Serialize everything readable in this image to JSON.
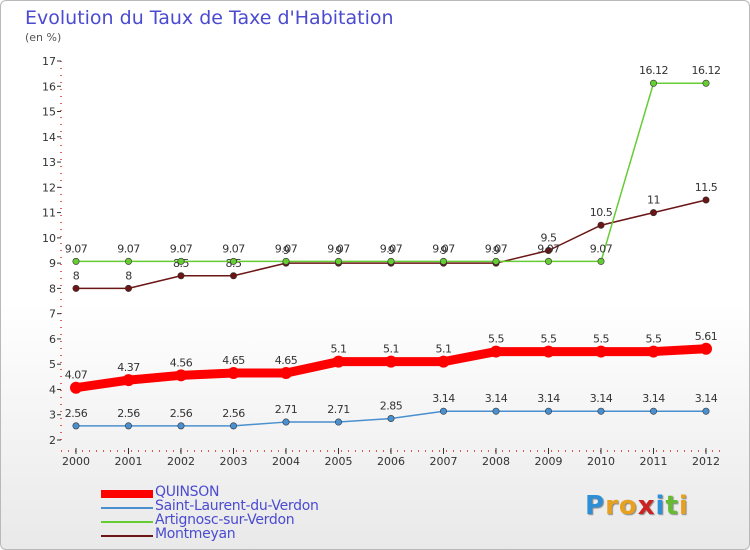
{
  "chart_data": {
    "type": "line",
    "title": "Evolution du Taux de Taxe d'Habitation",
    "subtitle": "(en %)",
    "x": [
      "2000",
      "2001",
      "2002",
      "2003",
      "2004",
      "2005",
      "2006",
      "2007",
      "2008",
      "2009",
      "2010",
      "2011",
      "2012"
    ],
    "ylim": [
      2,
      17
    ],
    "yticks": [
      2,
      3,
      4,
      5,
      6,
      7,
      8,
      9,
      10,
      11,
      12,
      13,
      14,
      15,
      16,
      17
    ],
    "grid": false,
    "legend_position": "bottom-left",
    "series": [
      {
        "name": "QUINSON",
        "color": "#ff0000",
        "values": [
          4.07,
          4.37,
          4.56,
          4.65,
          4.65,
          5.1,
          5.1,
          5.1,
          5.5,
          5.5,
          5.5,
          5.5,
          5.61
        ],
        "labels": [
          "4.07",
          "4.37",
          "4.56",
          "4.65",
          "4.65",
          "5.1",
          "5.1",
          "5.1",
          "5.5",
          "5.5",
          "5.5",
          "5.5",
          "5.61"
        ]
      },
      {
        "name": "Saint-Laurent-du-Verdon",
        "color": "#4a8fcf",
        "values": [
          2.56,
          2.56,
          2.56,
          2.56,
          2.71,
          2.71,
          2.85,
          3.14,
          3.14,
          3.14,
          3.14,
          3.14,
          3.14
        ],
        "labels": [
          "2.56",
          "2.56",
          "2.56",
          "2.56",
          "2.71",
          "2.71",
          "2.85",
          "3.14",
          "3.14",
          "3.14",
          "3.14",
          "3.14",
          "3.14"
        ]
      },
      {
        "name": "Artignosc-sur-Verdon",
        "color": "#66cc33",
        "values": [
          9.07,
          9.07,
          9.07,
          9.07,
          9.07,
          9.07,
          9.07,
          9.07,
          9.07,
          9.07,
          9.07,
          16.12,
          16.12
        ],
        "labels": [
          "9.07",
          "9.07",
          "9.07",
          "9.07",
          "9.07",
          "9.07",
          "9.07",
          "9.07",
          "9.07",
          "9.07",
          "9.07",
          "16.12",
          "16.12"
        ]
      },
      {
        "name": "Montmeyan",
        "color": "#6b1515",
        "values": [
          8,
          8,
          8.5,
          8.5,
          9,
          9,
          9,
          9,
          9,
          9.5,
          10.5,
          11,
          11.5
        ],
        "labels": [
          "8",
          "8",
          "8.5",
          "8.5",
          "9",
          "9",
          "9",
          "9",
          "9",
          "9.5",
          "10.5",
          "11",
          "11.5"
        ]
      }
    ]
  },
  "branding": {
    "logo_letters": [
      "P",
      "r",
      "o",
      "x",
      "i",
      "t",
      "i"
    ]
  }
}
